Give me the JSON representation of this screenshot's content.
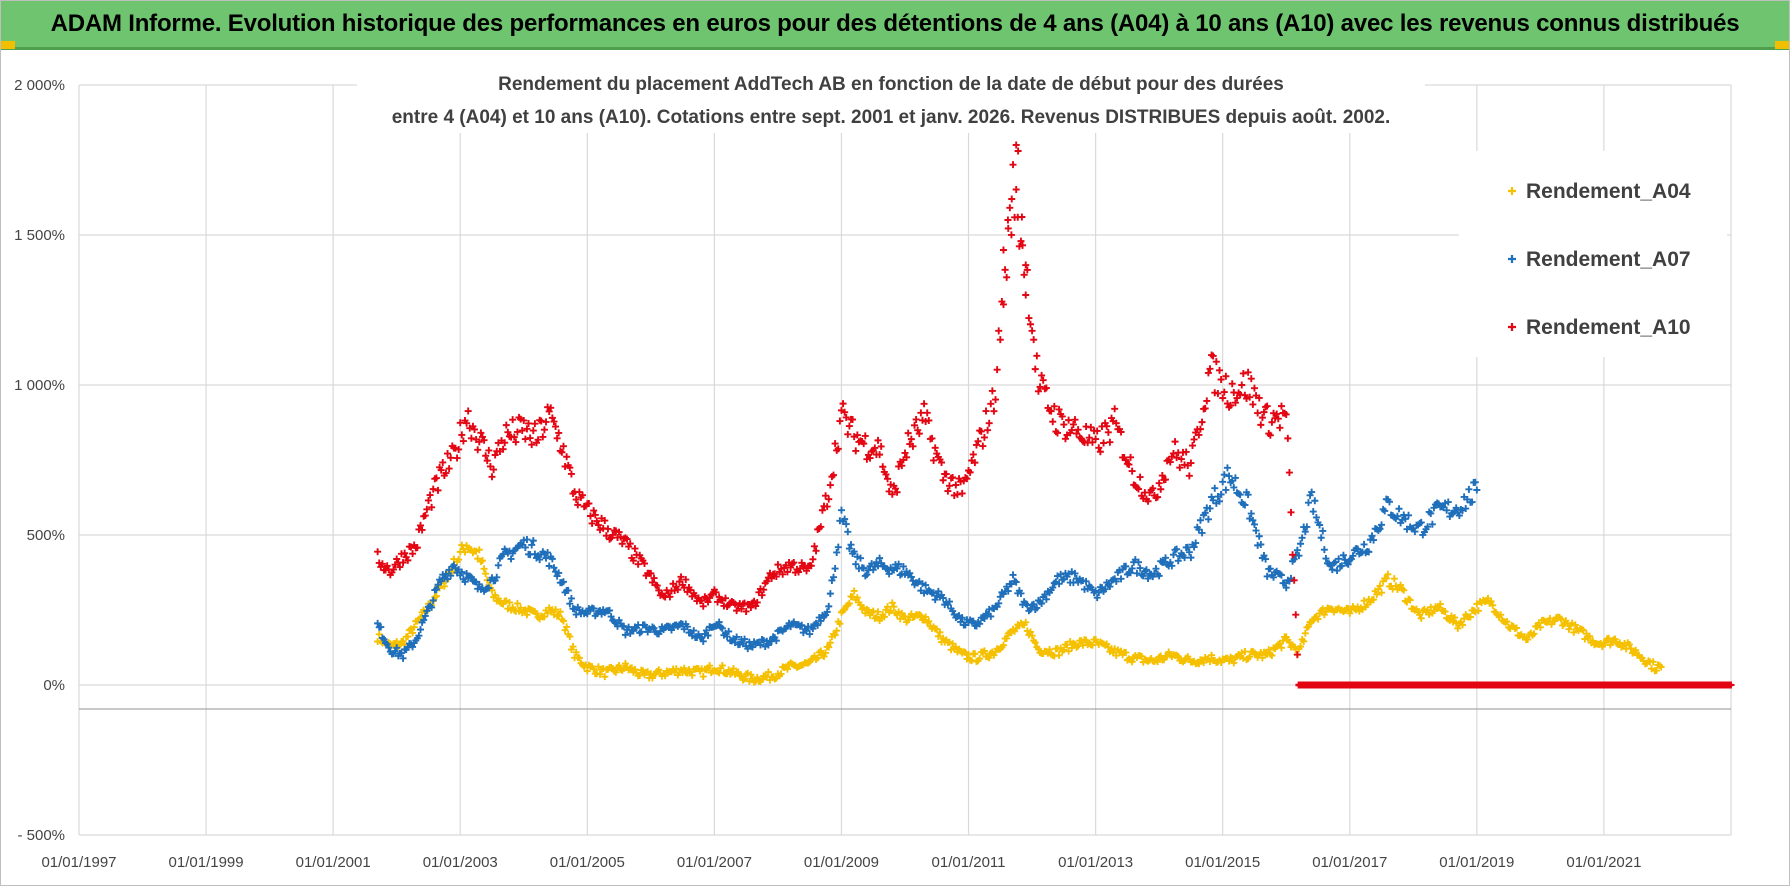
{
  "banner": {
    "title": "ADAM Informe. Evolution historique des performances en euros pour des détentions de 4 ans (A04) à 10 ans (A10) avec les revenus connus distribués"
  },
  "chart_data": {
    "type": "scatter",
    "title_line1": "Rendement du placement AddTech AB en fonction de la date de début pour des durées",
    "title_line2": "entre 4 (A04) et 10 ans (A10).  Cotations entre sept. 2001 et janv. 2026. Revenus DISTRIBUES depuis août. 2002.",
    "xlabel": "",
    "ylabel": "",
    "xlim": [
      1997.0,
      2023.0
    ],
    "ylim": [
      -500,
      2000
    ],
    "y_ticks": [
      {
        "value": 2000,
        "label": "2 000%"
      },
      {
        "value": 1500,
        "label": "1 500%"
      },
      {
        "value": 1000,
        "label": "1 000%"
      },
      {
        "value": 500,
        "label": "500%"
      },
      {
        "value": 0,
        "label": "0%"
      },
      {
        "value": -500,
        "label": "- 500%"
      }
    ],
    "x_ticks": [
      {
        "value": 1997,
        "label": "01/01/1997"
      },
      {
        "value": 1999,
        "label": "01/01/1999"
      },
      {
        "value": 2001,
        "label": "01/01/2001"
      },
      {
        "value": 2003,
        "label": "01/01/2003"
      },
      {
        "value": 2005,
        "label": "01/01/2005"
      },
      {
        "value": 2007,
        "label": "01/01/2007"
      },
      {
        "value": 2009,
        "label": "01/01/2009"
      },
      {
        "value": 2011,
        "label": "01/01/2011"
      },
      {
        "value": 2013,
        "label": "01/01/2013"
      },
      {
        "value": 2015,
        "label": "01/01/2015"
      },
      {
        "value": 2017,
        "label": "01/01/2017"
      },
      {
        "value": 2019,
        "label": "01/01/2019"
      },
      {
        "value": 2021,
        "label": "01/01/2021"
      }
    ],
    "grid": true,
    "legend_position": "top-right",
    "series": [
      {
        "name": "Rendement_A04",
        "color": "#f5c000",
        "points": [
          [
            2001.7,
            160
          ],
          [
            2001.9,
            130
          ],
          [
            2002.1,
            140
          ],
          [
            2002.3,
            200
          ],
          [
            2002.5,
            260
          ],
          [
            2002.7,
            330
          ],
          [
            2002.9,
            400
          ],
          [
            2003.1,
            470
          ],
          [
            2003.3,
            430
          ],
          [
            2003.5,
            300
          ],
          [
            2003.7,
            270
          ],
          [
            2004.0,
            250
          ],
          [
            2004.2,
            230
          ],
          [
            2004.4,
            250
          ],
          [
            2004.6,
            230
          ],
          [
            2004.8,
            100
          ],
          [
            2005.0,
            60
          ],
          [
            2005.3,
            40
          ],
          [
            2005.6,
            60
          ],
          [
            2005.9,
            30
          ],
          [
            2006.2,
            40
          ],
          [
            2006.5,
            50
          ],
          [
            2006.8,
            40
          ],
          [
            2007.0,
            60
          ],
          [
            2007.3,
            40
          ],
          [
            2007.6,
            20
          ],
          [
            2007.9,
            30
          ],
          [
            2008.2,
            60
          ],
          [
            2008.5,
            70
          ],
          [
            2008.8,
            120
          ],
          [
            2009.0,
            230
          ],
          [
            2009.2,
            300
          ],
          [
            2009.4,
            240
          ],
          [
            2009.6,
            230
          ],
          [
            2009.8,
            260
          ],
          [
            2010.0,
            220
          ],
          [
            2010.3,
            230
          ],
          [
            2010.6,
            150
          ],
          [
            2010.9,
            100
          ],
          [
            2011.1,
            90
          ],
          [
            2011.4,
            110
          ],
          [
            2011.7,
            180
          ],
          [
            2011.9,
            200
          ],
          [
            2012.1,
            120
          ],
          [
            2012.4,
            110
          ],
          [
            2012.7,
            140
          ],
          [
            2013.0,
            140
          ],
          [
            2013.3,
            110
          ],
          [
            2013.6,
            90
          ],
          [
            2013.9,
            80
          ],
          [
            2014.2,
            100
          ],
          [
            2014.5,
            80
          ],
          [
            2014.8,
            90
          ],
          [
            2015.1,
            80
          ],
          [
            2015.4,
            100
          ],
          [
            2015.7,
            100
          ],
          [
            2016.0,
            150
          ],
          [
            2016.2,
            110
          ],
          [
            2016.4,
            220
          ],
          [
            2016.7,
            260
          ],
          [
            2017.0,
            240
          ],
          [
            2017.3,
            280
          ],
          [
            2017.6,
            350
          ],
          [
            2017.8,
            320
          ],
          [
            2018.1,
            230
          ],
          [
            2018.4,
            260
          ],
          [
            2018.7,
            200
          ],
          [
            2019.0,
            260
          ],
          [
            2019.2,
            280
          ],
          [
            2019.5,
            200
          ],
          [
            2019.8,
            150
          ],
          [
            2020.0,
            200
          ],
          [
            2020.3,
            220
          ],
          [
            2020.6,
            180
          ],
          [
            2020.9,
            140
          ],
          [
            2021.2,
            150
          ],
          [
            2021.5,
            110
          ],
          [
            2021.8,
            60
          ],
          [
            2021.9,
            60
          ]
        ]
      },
      {
        "name": "Rendement_A07",
        "color": "#1f6fba",
        "points": [
          [
            2001.7,
            200
          ],
          [
            2001.9,
            120
          ],
          [
            2002.1,
            100
          ],
          [
            2002.3,
            150
          ],
          [
            2002.5,
            250
          ],
          [
            2002.7,
            350
          ],
          [
            2002.9,
            400
          ],
          [
            2003.1,
            360
          ],
          [
            2003.3,
            320
          ],
          [
            2003.5,
            350
          ],
          [
            2003.7,
            430
          ],
          [
            2004.0,
            470
          ],
          [
            2004.2,
            450
          ],
          [
            2004.4,
            420
          ],
          [
            2004.6,
            350
          ],
          [
            2004.8,
            250
          ],
          [
            2005.0,
            240
          ],
          [
            2005.3,
            250
          ],
          [
            2005.6,
            180
          ],
          [
            2005.9,
            190
          ],
          [
            2006.2,
            180
          ],
          [
            2006.5,
            200
          ],
          [
            2006.8,
            150
          ],
          [
            2007.0,
            210
          ],
          [
            2007.3,
            150
          ],
          [
            2007.6,
            130
          ],
          [
            2007.9,
            150
          ],
          [
            2008.2,
            200
          ],
          [
            2008.5,
            180
          ],
          [
            2008.8,
            260
          ],
          [
            2009.0,
            560
          ],
          [
            2009.2,
            420
          ],
          [
            2009.4,
            380
          ],
          [
            2009.6,
            400
          ],
          [
            2009.8,
            390
          ],
          [
            2010.0,
            380
          ],
          [
            2010.3,
            320
          ],
          [
            2010.6,
            290
          ],
          [
            2010.9,
            210
          ],
          [
            2011.1,
            200
          ],
          [
            2011.4,
            250
          ],
          [
            2011.7,
            350
          ],
          [
            2011.9,
            260
          ],
          [
            2012.1,
            270
          ],
          [
            2012.4,
            350
          ],
          [
            2012.7,
            360
          ],
          [
            2013.0,
            300
          ],
          [
            2013.3,
            350
          ],
          [
            2013.6,
            400
          ],
          [
            2013.9,
            370
          ],
          [
            2014.2,
            420
          ],
          [
            2014.5,
            450
          ],
          [
            2014.8,
            600
          ],
          [
            2015.1,
            700
          ],
          [
            2015.4,
            600
          ],
          [
            2015.7,
            380
          ],
          [
            2016.0,
            340
          ],
          [
            2016.2,
            440
          ],
          [
            2016.4,
            620
          ],
          [
            2016.7,
            390
          ],
          [
            2017.0,
            430
          ],
          [
            2017.3,
            470
          ],
          [
            2017.6,
            600
          ],
          [
            2017.8,
            560
          ],
          [
            2018.1,
            520
          ],
          [
            2018.4,
            580
          ],
          [
            2018.7,
            590
          ],
          [
            2019.0,
            650
          ]
        ]
      },
      {
        "name": "Rendement_A10",
        "color": "#e30613",
        "points": [
          [
            2001.7,
            420
          ],
          [
            2001.9,
            380
          ],
          [
            2002.1,
            430
          ],
          [
            2002.3,
            460
          ],
          [
            2002.5,
            600
          ],
          [
            2002.7,
            700
          ],
          [
            2002.9,
            760
          ],
          [
            2003.1,
            900
          ],
          [
            2003.3,
            820
          ],
          [
            2003.5,
            730
          ],
          [
            2003.7,
            830
          ],
          [
            2004.0,
            850
          ],
          [
            2004.2,
            820
          ],
          [
            2004.4,
            900
          ],
          [
            2004.6,
            800
          ],
          [
            2004.8,
            640
          ],
          [
            2005.0,
            580
          ],
          [
            2005.3,
            520
          ],
          [
            2005.6,
            470
          ],
          [
            2005.9,
            390
          ],
          [
            2006.2,
            290
          ],
          [
            2006.5,
            350
          ],
          [
            2006.8,
            270
          ],
          [
            2007.0,
            300
          ],
          [
            2007.3,
            260
          ],
          [
            2007.6,
            260
          ],
          [
            2007.9,
            370
          ],
          [
            2008.2,
            400
          ],
          [
            2008.5,
            380
          ],
          [
            2008.8,
            650
          ],
          [
            2009.0,
            900
          ],
          [
            2009.2,
            830
          ],
          [
            2009.4,
            800
          ],
          [
            2009.6,
            790
          ],
          [
            2009.8,
            620
          ],
          [
            2010.0,
            780
          ],
          [
            2010.3,
            890
          ],
          [
            2010.6,
            700
          ],
          [
            2010.9,
            640
          ],
          [
            2011.1,
            760
          ],
          [
            2011.4,
            950
          ],
          [
            2011.7,
            1650
          ],
          [
            2011.9,
            1400
          ],
          [
            2012.1,
            1000
          ],
          [
            2012.4,
            880
          ],
          [
            2012.7,
            850
          ],
          [
            2013.0,
            800
          ],
          [
            2013.3,
            870
          ],
          [
            2013.6,
            700
          ],
          [
            2013.9,
            620
          ],
          [
            2014.2,
            780
          ],
          [
            2014.5,
            730
          ],
          [
            2014.8,
            1050
          ],
          [
            2015.1,
            980
          ],
          [
            2015.4,
            1000
          ],
          [
            2015.7,
            880
          ],
          [
            2016.0,
            900
          ],
          [
            2016.2,
            0
          ],
          [
            2016.6,
            0
          ],
          [
            2017.0,
            0
          ],
          [
            2017.5,
            0
          ],
          [
            2018.0,
            0
          ],
          [
            2018.5,
            0
          ],
          [
            2019.0,
            0
          ],
          [
            2019.5,
            0
          ],
          [
            2020.0,
            0
          ],
          [
            2020.5,
            0
          ],
          [
            2021.0,
            0
          ],
          [
            2021.5,
            0
          ],
          [
            2022.0,
            0
          ],
          [
            2022.5,
            0
          ],
          [
            2023.0,
            0
          ]
        ]
      }
    ]
  }
}
